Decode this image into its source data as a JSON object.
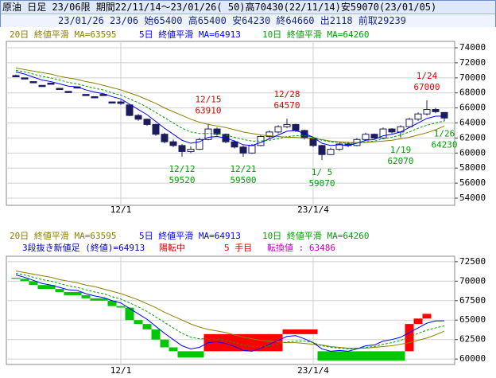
{
  "header": {
    "line1": "原油 日足 23/06限 期間22/11/14～23/01/26( 50)高70430(22/11/14)安59070(23/01/05)",
    "line2": "23/01/26 23/06 始65400 高65400 安64230 終64660 出2118 前取29239"
  },
  "chart_data": [
    {
      "type": "candlestick",
      "categories": [
        null,
        null,
        null,
        null,
        null,
        null,
        null,
        null,
        null,
        null,
        null,
        null,
        "12/1",
        null,
        null,
        null,
        null,
        null,
        null,
        null,
        null,
        null,
        null,
        null,
        null,
        null,
        null,
        null,
        null,
        null,
        null,
        null,
        null,
        null,
        "23/1/4",
        null,
        null,
        null,
        null,
        null,
        null,
        null,
        null,
        null,
        null,
        null,
        null,
        null,
        null,
        null
      ],
      "open": [
        70300,
        70000,
        69500,
        69000,
        69300,
        68600,
        68200,
        68800,
        67800,
        67500,
        67800,
        66800,
        66800,
        66400,
        65000,
        64500,
        63800,
        62500,
        61500,
        61000,
        60200,
        60500,
        61800,
        63200,
        62500,
        61500,
        60800,
        60000,
        61000,
        62200,
        62800,
        63500,
        63800,
        63000,
        62000,
        61000,
        59800,
        60500,
        61200,
        61000,
        61800,
        62500,
        62000,
        63200,
        62800,
        63500,
        64500,
        65200,
        65800,
        65400
      ],
      "high": [
        70430,
        70000,
        69500,
        69000,
        69300,
        68600,
        68200,
        68800,
        67800,
        67500,
        67800,
        66800,
        67000,
        66500,
        65200,
        64600,
        63900,
        62700,
        61800,
        61200,
        60900,
        62000,
        63910,
        63400,
        62600,
        61700,
        61000,
        61200,
        62400,
        63000,
        63700,
        64570,
        63900,
        63100,
        62100,
        61100,
        60700,
        61400,
        61500,
        62000,
        62700,
        62600,
        63400,
        63300,
        63700,
        64700,
        65400,
        67000,
        66000,
        65400
      ],
      "low": [
        70300,
        70000,
        69500,
        69000,
        69300,
        68600,
        68200,
        68800,
        67800,
        67500,
        67800,
        66800,
        66400,
        64900,
        64300,
        63600,
        62300,
        61300,
        60800,
        59520,
        60000,
        60400,
        61700,
        62300,
        61300,
        60600,
        59500,
        59900,
        60900,
        62000,
        62600,
        63300,
        62800,
        61800,
        60800,
        59070,
        59700,
        60300,
        60800,
        60900,
        61600,
        61800,
        61900,
        62600,
        62070,
        63400,
        64300,
        65000,
        65300,
        64230
      ],
      "close": [
        70300,
        70000,
        69500,
        69000,
        69300,
        68600,
        68200,
        68800,
        67800,
        67500,
        67800,
        66800,
        66600,
        65000,
        64500,
        63800,
        62500,
        61500,
        61000,
        60200,
        60500,
        61800,
        63200,
        62500,
        61500,
        60800,
        60000,
        61000,
        62200,
        62800,
        63500,
        63800,
        63000,
        62000,
        61000,
        59800,
        60500,
        61200,
        61000,
        61800,
        62500,
        62000,
        63200,
        62800,
        63500,
        64500,
        65200,
        65800,
        65500,
        64660
      ],
      "up_color": "#ffffff",
      "down_color": "#1c1c5c",
      "series": [
        {
          "name": "20日 終値平滑 MA=63595",
          "color": "#8b8000",
          "dashed": false,
          "values": [
            71300,
            71100,
            70900,
            70700,
            70500,
            70200,
            70000,
            69800,
            69500,
            69300,
            69000,
            68700,
            68400,
            68000,
            67600,
            67100,
            66600,
            66000,
            65500,
            65000,
            64500,
            64100,
            63800,
            63600,
            63400,
            63100,
            62800,
            62600,
            62400,
            62300,
            62200,
            62100,
            62100,
            62000,
            61900,
            61800,
            61600,
            61500,
            61400,
            61400,
            61400,
            61500,
            61600,
            61700,
            61900,
            62100,
            62400,
            62700,
            63100,
            63595
          ]
        },
        {
          "name": "5日 終値平滑 MA=64913",
          "color": "#0000ff",
          "dashed": false,
          "values": [
            70800,
            70500,
            70100,
            69700,
            69500,
            69200,
            68900,
            68800,
            68400,
            68100,
            67900,
            67500,
            67200,
            66500,
            65800,
            65100,
            64200,
            63300,
            62500,
            61700,
            61300,
            61500,
            62100,
            62200,
            62000,
            61600,
            61100,
            61000,
            61400,
            61900,
            62400,
            62900,
            63000,
            62600,
            62100,
            61300,
            61000,
            61100,
            61000,
            61300,
            61700,
            61800,
            62300,
            62500,
            62800,
            63400,
            64000,
            64600,
            64900,
            64913
          ]
        },
        {
          "name": "10日 終値平滑 MA=64260",
          "color": "#00a000",
          "dashed": true,
          "values": [
            71000,
            70800,
            70500,
            70200,
            70000,
            69700,
            69400,
            69200,
            68900,
            68600,
            68400,
            68000,
            67700,
            67200,
            66700,
            66100,
            65400,
            64700,
            64000,
            63300,
            62800,
            62600,
            62600,
            62600,
            62400,
            62100,
            61800,
            61600,
            61600,
            61700,
            61900,
            62200,
            62300,
            62300,
            62100,
            61700,
            61500,
            61400,
            61300,
            61300,
            61500,
            61600,
            61900,
            62100,
            62400,
            62800,
            63300,
            63700,
            64000,
            64260
          ]
        }
      ],
      "ylim": [
        53050,
        74850
      ],
      "yticks": [
        74000,
        72000,
        70000,
        68000,
        66000,
        64000,
        62000,
        60000,
        58000,
        56000,
        54000
      ],
      "grid": true,
      "annotations": [
        {
          "date": "12/12",
          "value": 59520,
          "x": 19,
          "color": "#00a000"
        },
        {
          "date": "12/15",
          "value": 63910,
          "x": 22,
          "color": "#e00000"
        },
        {
          "date": "12/21",
          "value": 59500,
          "x": 26,
          "color": "#00a000"
        },
        {
          "date": "12/28",
          "value": 64570,
          "x": 31,
          "color": "#e00000"
        },
        {
          "date": "1/ 5",
          "value": 59070,
          "x": 35,
          "color": "#00a000"
        },
        {
          "date": "1/19",
          "value": 62070,
          "x": 44,
          "color": "#00a000"
        },
        {
          "date": "1/24",
          "value": 67000,
          "x": 47,
          "color": "#e00000"
        },
        {
          "date": "1/26",
          "value": 64230,
          "x": 49,
          "color": "#00a000"
        }
      ]
    },
    {
      "type": "three_line_break",
      "categories": [
        null,
        null,
        null,
        null,
        null,
        null,
        null,
        null,
        null,
        null,
        null,
        null,
        "12/1",
        null,
        null,
        null,
        null,
        null,
        null,
        null,
        null,
        null,
        null,
        null,
        null,
        null,
        null,
        null,
        null,
        null,
        null,
        null,
        null,
        null,
        "23/1/4",
        null,
        null,
        null,
        null,
        null,
        null,
        null,
        null,
        null,
        null,
        null,
        null,
        null,
        null,
        null
      ],
      "open": [
        70430,
        70300,
        70000,
        69500,
        null,
        69000,
        68600,
        null,
        68200,
        67800,
        null,
        67500,
        66800,
        66600,
        65000,
        64500,
        63800,
        62500,
        61500,
        61000,
        null,
        null,
        61000,
        null,
        null,
        null,
        null,
        null,
        null,
        null,
        null,
        63200,
        null,
        null,
        null,
        61000,
        null,
        null,
        null,
        null,
        null,
        null,
        null,
        null,
        null,
        61000,
        64500,
        65200,
        null,
        null
      ],
      "close": [
        70300,
        70000,
        69500,
        69000,
        null,
        68600,
        68200,
        null,
        67800,
        67500,
        null,
        66800,
        66600,
        65000,
        64500,
        63800,
        62500,
        61500,
        61000,
        60200,
        null,
        null,
        63200,
        null,
        null,
        null,
        null,
        null,
        null,
        null,
        null,
        63800,
        null,
        null,
        null,
        59800,
        null,
        null,
        null,
        null,
        null,
        null,
        null,
        null,
        null,
        64500,
        65200,
        65800,
        null,
        null
      ],
      "up_color": "#ff0000",
      "down_color": "#00c800",
      "series": [
        {
          "name": "20日 終値平滑 MA=63595",
          "color": "#8b8000",
          "dashed": false,
          "values": [
            71300,
            71100,
            70900,
            70700,
            70500,
            70200,
            70000,
            69800,
            69500,
            69300,
            69000,
            68700,
            68400,
            68000,
            67600,
            67100,
            66600,
            66000,
            65500,
            65000,
            64500,
            64100,
            63800,
            63600,
            63400,
            63100,
            62800,
            62600,
            62400,
            62300,
            62200,
            62100,
            62100,
            62000,
            61900,
            61800,
            61600,
            61500,
            61400,
            61400,
            61400,
            61500,
            61600,
            61700,
            61900,
            62100,
            62400,
            62700,
            63100,
            63595
          ]
        },
        {
          "name": "5日 終値平滑 MA=64913",
          "color": "#0000ff",
          "dashed": false,
          "values": [
            70800,
            70500,
            70100,
            69700,
            69500,
            69200,
            68900,
            68800,
            68400,
            68100,
            67900,
            67500,
            67200,
            66500,
            65800,
            65100,
            64200,
            63300,
            62500,
            61700,
            61300,
            61500,
            62100,
            62200,
            62000,
            61600,
            61100,
            61000,
            61400,
            61900,
            62400,
            62900,
            63000,
            62600,
            62100,
            61300,
            61000,
            61100,
            61000,
            61300,
            61700,
            61800,
            62300,
            62500,
            62800,
            63400,
            64000,
            64600,
            64900,
            64913
          ]
        },
        {
          "name": "10日 終値平滑 MA=64260",
          "color": "#00a000",
          "dashed": true,
          "values": [
            71000,
            70800,
            70500,
            70200,
            70000,
            69700,
            69400,
            69200,
            68900,
            68600,
            68400,
            68000,
            67700,
            67200,
            66700,
            66100,
            65400,
            64700,
            64000,
            63300,
            62800,
            62600,
            62600,
            62600,
            62400,
            62100,
            61800,
            61600,
            61600,
            61700,
            61900,
            62200,
            62300,
            62300,
            62100,
            61700,
            61500,
            61400,
            61300,
            61300,
            61500,
            61600,
            61900,
            62100,
            62400,
            62800,
            63300,
            63700,
            64000,
            64260
          ]
        }
      ],
      "info": [
        {
          "text": "3段抜き新値足 (終値)=64913",
          "color": "#0000c0"
        },
        {
          "text": "陽転中",
          "color": "#e00000"
        },
        {
          "text": "5 手目",
          "color": "#e00000"
        },
        {
          "text": "転換値 : 63486",
          "color": "#c000c0"
        }
      ],
      "ylim": [
        59300,
        73200
      ],
      "yticks": [
        72500,
        70000,
        67500,
        65000,
        62500,
        60000
      ],
      "grid": true
    }
  ]
}
